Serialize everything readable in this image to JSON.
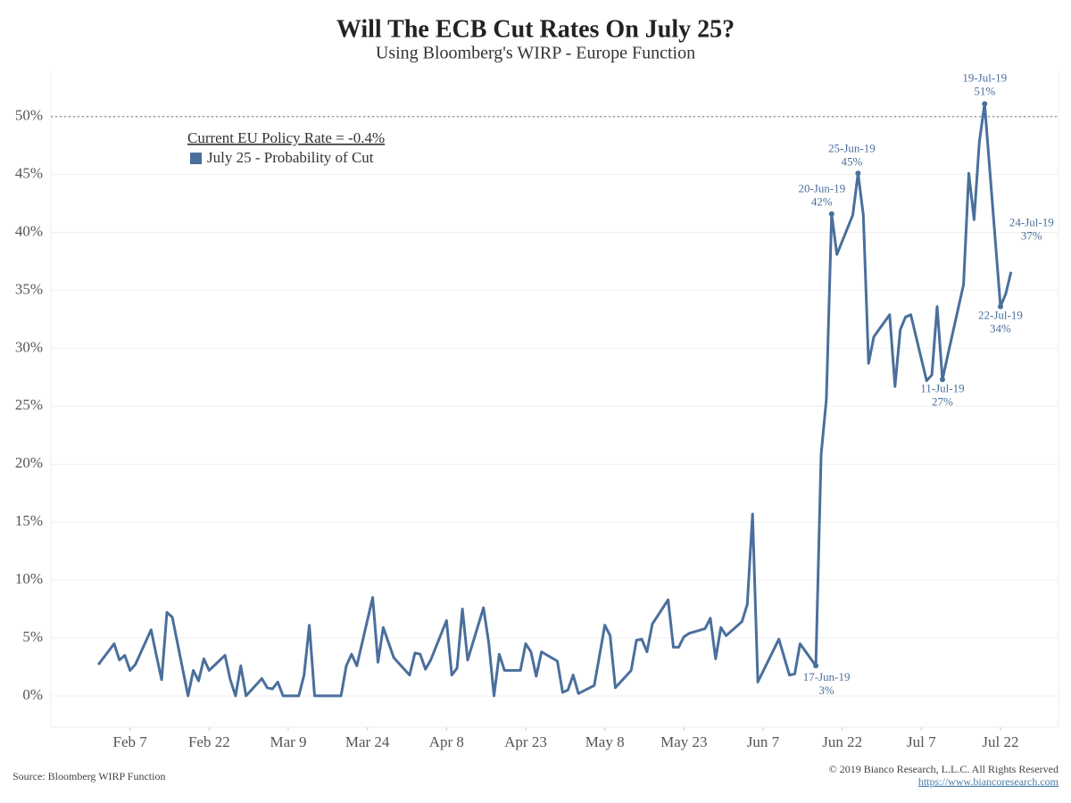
{
  "chart_data": {
    "type": "line",
    "title": "Will The ECB Cut Rates On July 25?",
    "subtitle": "Using Bloomberg's WIRP - Europe Function",
    "legend_title": "Current EU Policy Rate = -0.4%",
    "source": "Source: Bloomberg WIRP Function",
    "copyright": "© 2019 Bianco Research, L.L.C. All Rights Reserved",
    "url": "https://www.biancoresearch.com",
    "grid": true,
    "reference_line": 50,
    "xlim": [
      "2019-01-23",
      "2019-08-02"
    ],
    "xticks": [
      {
        "value": "2019-02-07",
        "label": "Feb 7"
      },
      {
        "value": "2019-02-22",
        "label": "Feb 22"
      },
      {
        "value": "2019-03-09",
        "label": "Mar 9"
      },
      {
        "value": "2019-03-24",
        "label": "Mar 24"
      },
      {
        "value": "2019-04-08",
        "label": "Apr 8"
      },
      {
        "value": "2019-04-23",
        "label": "Apr 23"
      },
      {
        "value": "2019-05-08",
        "label": "May 8"
      },
      {
        "value": "2019-05-23",
        "label": "May 23"
      },
      {
        "value": "2019-06-07",
        "label": "Jun 7"
      },
      {
        "value": "2019-06-22",
        "label": "Jun 22"
      },
      {
        "value": "2019-07-07",
        "label": "Jul 7"
      },
      {
        "value": "2019-07-22",
        "label": "Jul 22"
      }
    ],
    "ylim": [
      -2.7,
      53.9
    ],
    "yticks": [
      {
        "value": 0,
        "label": "0%"
      },
      {
        "value": 5,
        "label": "5%"
      },
      {
        "value": 10,
        "label": "10%"
      },
      {
        "value": 15,
        "label": "15%"
      },
      {
        "value": 20,
        "label": "20%"
      },
      {
        "value": 25,
        "label": "25%"
      },
      {
        "value": 30,
        "label": "30%"
      },
      {
        "value": 35,
        "label": "35%"
      },
      {
        "value": 40,
        "label": "40%"
      },
      {
        "value": 45,
        "label": "45%"
      },
      {
        "value": 50,
        "label": "50%"
      }
    ],
    "x": [
      "2019-02-01",
      "2019-02-04",
      "2019-02-05",
      "2019-02-06",
      "2019-02-07",
      "2019-02-08",
      "2019-02-11",
      "2019-02-12",
      "2019-02-13",
      "2019-02-14",
      "2019-02-15",
      "2019-02-18",
      "2019-02-19",
      "2019-02-20",
      "2019-02-21",
      "2019-02-22",
      "2019-02-25",
      "2019-02-26",
      "2019-02-27",
      "2019-02-28",
      "2019-03-01",
      "2019-03-04",
      "2019-03-05",
      "2019-03-06",
      "2019-03-07",
      "2019-03-08",
      "2019-03-11",
      "2019-03-12",
      "2019-03-13",
      "2019-03-14",
      "2019-03-15",
      "2019-03-18",
      "2019-03-19",
      "2019-03-20",
      "2019-03-21",
      "2019-03-22",
      "2019-03-25",
      "2019-03-26",
      "2019-03-27",
      "2019-03-28",
      "2019-03-29",
      "2019-04-01",
      "2019-04-02",
      "2019-04-03",
      "2019-04-04",
      "2019-04-05",
      "2019-04-08",
      "2019-04-09",
      "2019-04-10",
      "2019-04-11",
      "2019-04-12",
      "2019-04-15",
      "2019-04-16",
      "2019-04-17",
      "2019-04-18",
      "2019-04-19",
      "2019-04-22",
      "2019-04-23",
      "2019-04-24",
      "2019-04-25",
      "2019-04-26",
      "2019-04-29",
      "2019-04-30",
      "2019-05-01",
      "2019-05-02",
      "2019-05-03",
      "2019-05-06",
      "2019-05-08",
      "2019-05-09",
      "2019-05-10",
      "2019-05-13",
      "2019-05-14",
      "2019-05-15",
      "2019-05-16",
      "2019-05-17",
      "2019-05-20",
      "2019-05-21",
      "2019-05-22",
      "2019-05-23",
      "2019-05-24",
      "2019-05-27",
      "2019-05-28",
      "2019-05-29",
      "2019-05-30",
      "2019-05-31",
      "2019-06-03",
      "2019-06-04",
      "2019-06-05",
      "2019-06-06",
      "2019-06-10",
      "2019-06-12",
      "2019-06-13",
      "2019-06-14",
      "2019-06-17",
      "2019-06-18",
      "2019-06-19",
      "2019-06-20",
      "2019-06-21",
      "2019-06-24",
      "2019-06-25",
      "2019-06-26",
      "2019-06-27",
      "2019-06-28",
      "2019-07-01",
      "2019-07-02",
      "2019-07-03",
      "2019-07-04",
      "2019-07-05",
      "2019-07-08",
      "2019-07-09",
      "2019-07-10",
      "2019-07-11",
      "2019-07-12",
      "2019-07-15",
      "2019-07-16",
      "2019-07-17",
      "2019-07-18",
      "2019-07-19",
      "2019-07-22",
      "2019-07-23",
      "2019-07-24"
    ],
    "series": [
      {
        "name": "July 25 -  Probability of Cut",
        "color": "#4a6f9c",
        "values": [
          2.7,
          4.5,
          3.1,
          3.5,
          2.2,
          2.7,
          5.7,
          3.5,
          1.4,
          7.2,
          6.8,
          0,
          2.2,
          1.3,
          3.2,
          2.2,
          3.5,
          1.4,
          0,
          2.6,
          0,
          1.5,
          0.7,
          0.6,
          1.2,
          0,
          0,
          1.8,
          6.1,
          0,
          0,
          0,
          0,
          2.6,
          3.6,
          2.6,
          8.5,
          2.9,
          5.9,
          4.6,
          3.3,
          1.8,
          3.7,
          3.6,
          2.3,
          3.1,
          6.5,
          1.8,
          2.4,
          7.5,
          3.1,
          7.6,
          4.6,
          0,
          3.6,
          2.2,
          2.2,
          4.5,
          3.8,
          1.7,
          3.8,
          3.0,
          0.3,
          0.5,
          1.8,
          0.2,
          0.9,
          6.1,
          5.2,
          0.7,
          2.2,
          4.8,
          4.9,
          3.8,
          6.2,
          8.3,
          4.2,
          4.2,
          5.1,
          5.4,
          5.8,
          6.7,
          3.2,
          5.9,
          5.2,
          6.4,
          7.9,
          15.7,
          1.2,
          4.9,
          1.8,
          1.9,
          4.5,
          2.6,
          20.8,
          25.6,
          41.6,
          38.1,
          41.5,
          45.1,
          41.5,
          28.7,
          31.0,
          32.9,
          26.7,
          31.6,
          32.7,
          32.9,
          27.2,
          27.7,
          33.6,
          27.3,
          29.4,
          35.5,
          45.1,
          41.1,
          47.8,
          51.1,
          33.6,
          34.7,
          36.6
        ]
      }
    ],
    "annotations": [
      {
        "x": "2019-06-17",
        "date": "17-Jun-19",
        "label": "3%"
      },
      {
        "x": "2019-06-20",
        "date": "20-Jun-19",
        "label": "42%"
      },
      {
        "x": "2019-06-25",
        "date": "25-Jun-19",
        "label": "45%"
      },
      {
        "x": "2019-07-11",
        "date": "11-Jul-19",
        "label": "27%"
      },
      {
        "x": "2019-07-19",
        "date": "19-Jul-19",
        "label": "51%"
      },
      {
        "x": "2019-07-22",
        "date": "22-Jul-19",
        "label": "34%"
      },
      {
        "x": "2019-07-24",
        "date": "24-Jul-19",
        "label": "37%"
      }
    ]
  }
}
